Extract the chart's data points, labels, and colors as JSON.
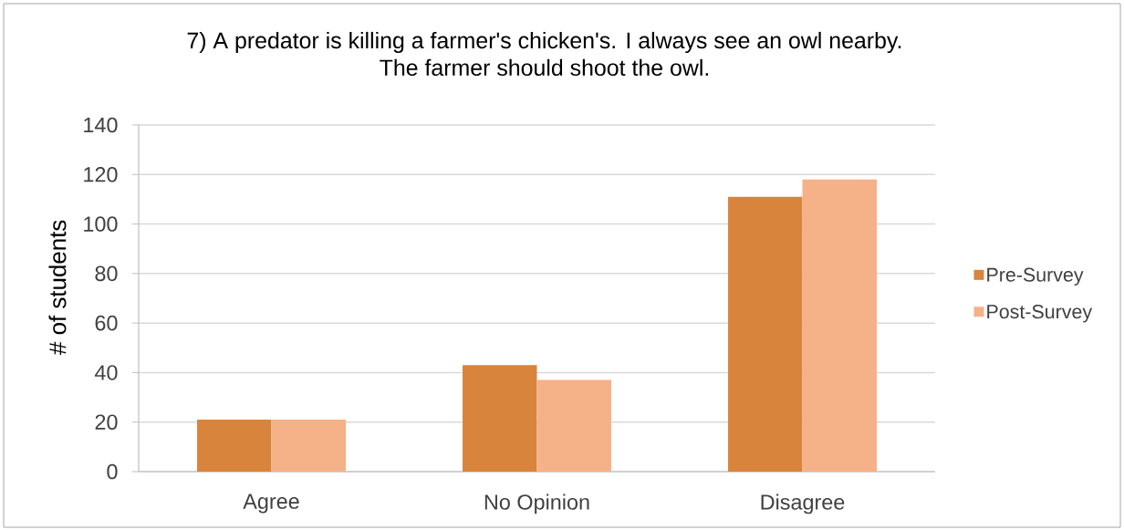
{
  "chart_data": {
    "type": "bar",
    "title": "7) A predator is killing a farmer's chicken's. I always see an owl nearby. The farmer should shoot the owl.",
    "ylabel": "# of students",
    "categories": [
      "Agree",
      "No Opinion",
      "Disagree"
    ],
    "series": [
      {
        "name": "Pre-Survey",
        "color": "#d9843c",
        "values": [
          21,
          43,
          111
        ]
      },
      {
        "name": "Post-Survey",
        "color": "#f5b187",
        "values": [
          21,
          37,
          118
        ]
      }
    ],
    "ylim": [
      0,
      140
    ],
    "yticks": [
      0,
      20,
      40,
      60,
      80,
      100,
      120,
      140
    ],
    "grid": "y",
    "legend": "right"
  }
}
